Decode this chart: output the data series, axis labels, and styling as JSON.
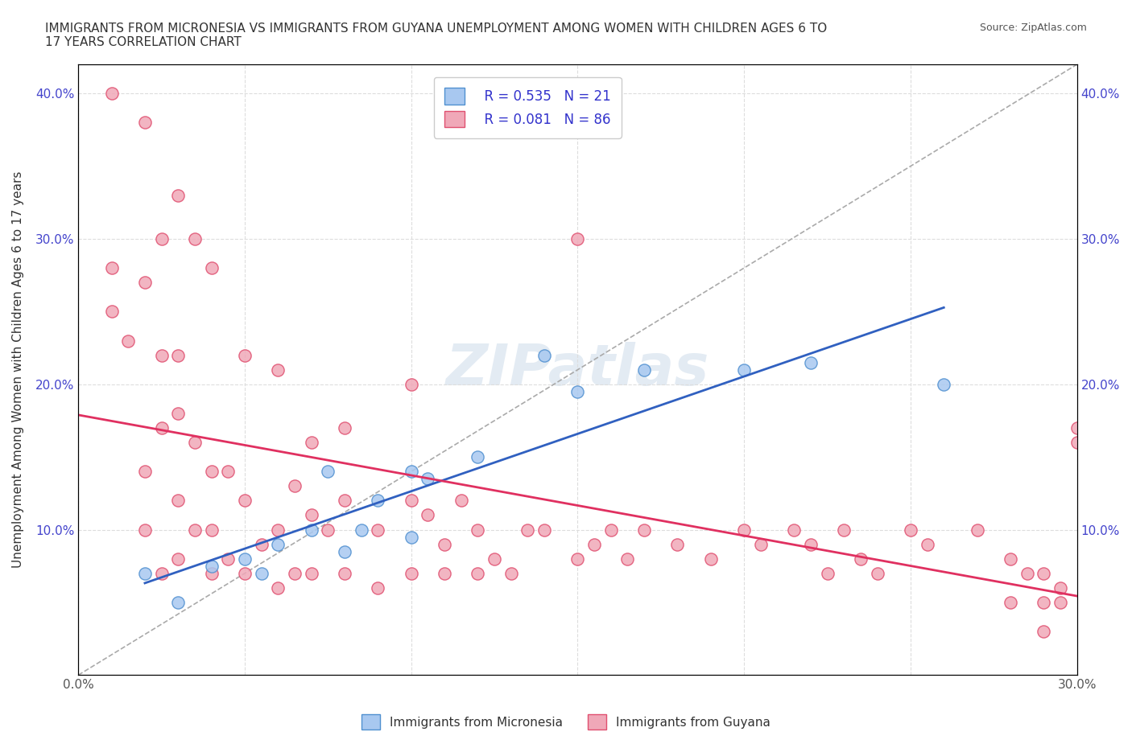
{
  "title": "IMMIGRANTS FROM MICRONESIA VS IMMIGRANTS FROM GUYANA UNEMPLOYMENT AMONG WOMEN WITH CHILDREN AGES 6 TO\n17 YEARS CORRELATION CHART",
  "source_text": "Source: ZipAtlas.com",
  "xlabel": "",
  "ylabel": "Unemployment Among Women with Children Ages 6 to 17 years",
  "xlim": [
    0.0,
    0.3
  ],
  "ylim": [
    0.0,
    0.42
  ],
  "xticks": [
    0.0,
    0.05,
    0.1,
    0.15,
    0.2,
    0.25,
    0.3
  ],
  "xtick_labels": [
    "0.0%",
    "",
    "",
    "",
    "",
    "",
    "30.0%"
  ],
  "yticks": [
    0.0,
    0.1,
    0.2,
    0.3,
    0.4
  ],
  "ytick_labels": [
    "",
    "10.0%",
    "20.0%",
    "30.0%",
    "40.0%"
  ],
  "micronesia_color": "#a8c8f0",
  "guyana_color": "#f0a8b8",
  "micronesia_edge": "#5090d0",
  "guyana_edge": "#e05070",
  "trend_micronesia_color": "#3060c0",
  "trend_guyana_color": "#e03060",
  "legend_R_micronesia": "R = 0.535",
  "legend_N_micronesia": "N = 21",
  "legend_R_guyana": "R = 0.081",
  "legend_N_guyana": "N = 86",
  "watermark": "ZIPatlas",
  "watermark_color": "#c8d8e8",
  "background_color": "#ffffff",
  "micronesia_x": [
    0.02,
    0.03,
    0.04,
    0.05,
    0.055,
    0.06,
    0.07,
    0.075,
    0.08,
    0.085,
    0.09,
    0.1,
    0.1,
    0.105,
    0.12,
    0.14,
    0.15,
    0.17,
    0.2,
    0.22,
    0.26
  ],
  "micronesia_y": [
    0.07,
    0.05,
    0.075,
    0.08,
    0.07,
    0.09,
    0.1,
    0.14,
    0.085,
    0.1,
    0.12,
    0.14,
    0.095,
    0.135,
    0.15,
    0.22,
    0.195,
    0.21,
    0.21,
    0.215,
    0.2
  ],
  "guyana_x": [
    0.01,
    0.01,
    0.015,
    0.02,
    0.02,
    0.02,
    0.025,
    0.025,
    0.025,
    0.03,
    0.03,
    0.03,
    0.03,
    0.035,
    0.035,
    0.04,
    0.04,
    0.04,
    0.045,
    0.045,
    0.05,
    0.05,
    0.055,
    0.06,
    0.06,
    0.065,
    0.065,
    0.07,
    0.07,
    0.075,
    0.08,
    0.08,
    0.09,
    0.09,
    0.1,
    0.1,
    0.105,
    0.11,
    0.11,
    0.115,
    0.12,
    0.12,
    0.125,
    0.13,
    0.135,
    0.14,
    0.15,
    0.155,
    0.16,
    0.165,
    0.17,
    0.18,
    0.19,
    0.2,
    0.205,
    0.215,
    0.22,
    0.225,
    0.23,
    0.235,
    0.24,
    0.25,
    0.255,
    0.27,
    0.28,
    0.285,
    0.29,
    0.29,
    0.295,
    0.295,
    0.3,
    0.01,
    0.02,
    0.025,
    0.03,
    0.035,
    0.04,
    0.05,
    0.06,
    0.07,
    0.08,
    0.1,
    0.15,
    0.28,
    0.29,
    0.3
  ],
  "guyana_y": [
    0.28,
    0.25,
    0.23,
    0.27,
    0.14,
    0.1,
    0.22,
    0.17,
    0.07,
    0.22,
    0.18,
    0.12,
    0.08,
    0.16,
    0.1,
    0.14,
    0.1,
    0.07,
    0.14,
    0.08,
    0.12,
    0.07,
    0.09,
    0.1,
    0.06,
    0.13,
    0.07,
    0.11,
    0.07,
    0.1,
    0.12,
    0.07,
    0.1,
    0.06,
    0.12,
    0.07,
    0.11,
    0.09,
    0.07,
    0.12,
    0.1,
    0.07,
    0.08,
    0.07,
    0.1,
    0.1,
    0.08,
    0.09,
    0.1,
    0.08,
    0.1,
    0.09,
    0.08,
    0.1,
    0.09,
    0.1,
    0.09,
    0.07,
    0.1,
    0.08,
    0.07,
    0.1,
    0.09,
    0.1,
    0.08,
    0.07,
    0.07,
    0.05,
    0.05,
    0.06,
    0.16,
    0.4,
    0.38,
    0.3,
    0.33,
    0.3,
    0.28,
    0.22,
    0.21,
    0.16,
    0.17,
    0.2,
    0.3,
    0.05,
    0.03,
    0.17
  ]
}
